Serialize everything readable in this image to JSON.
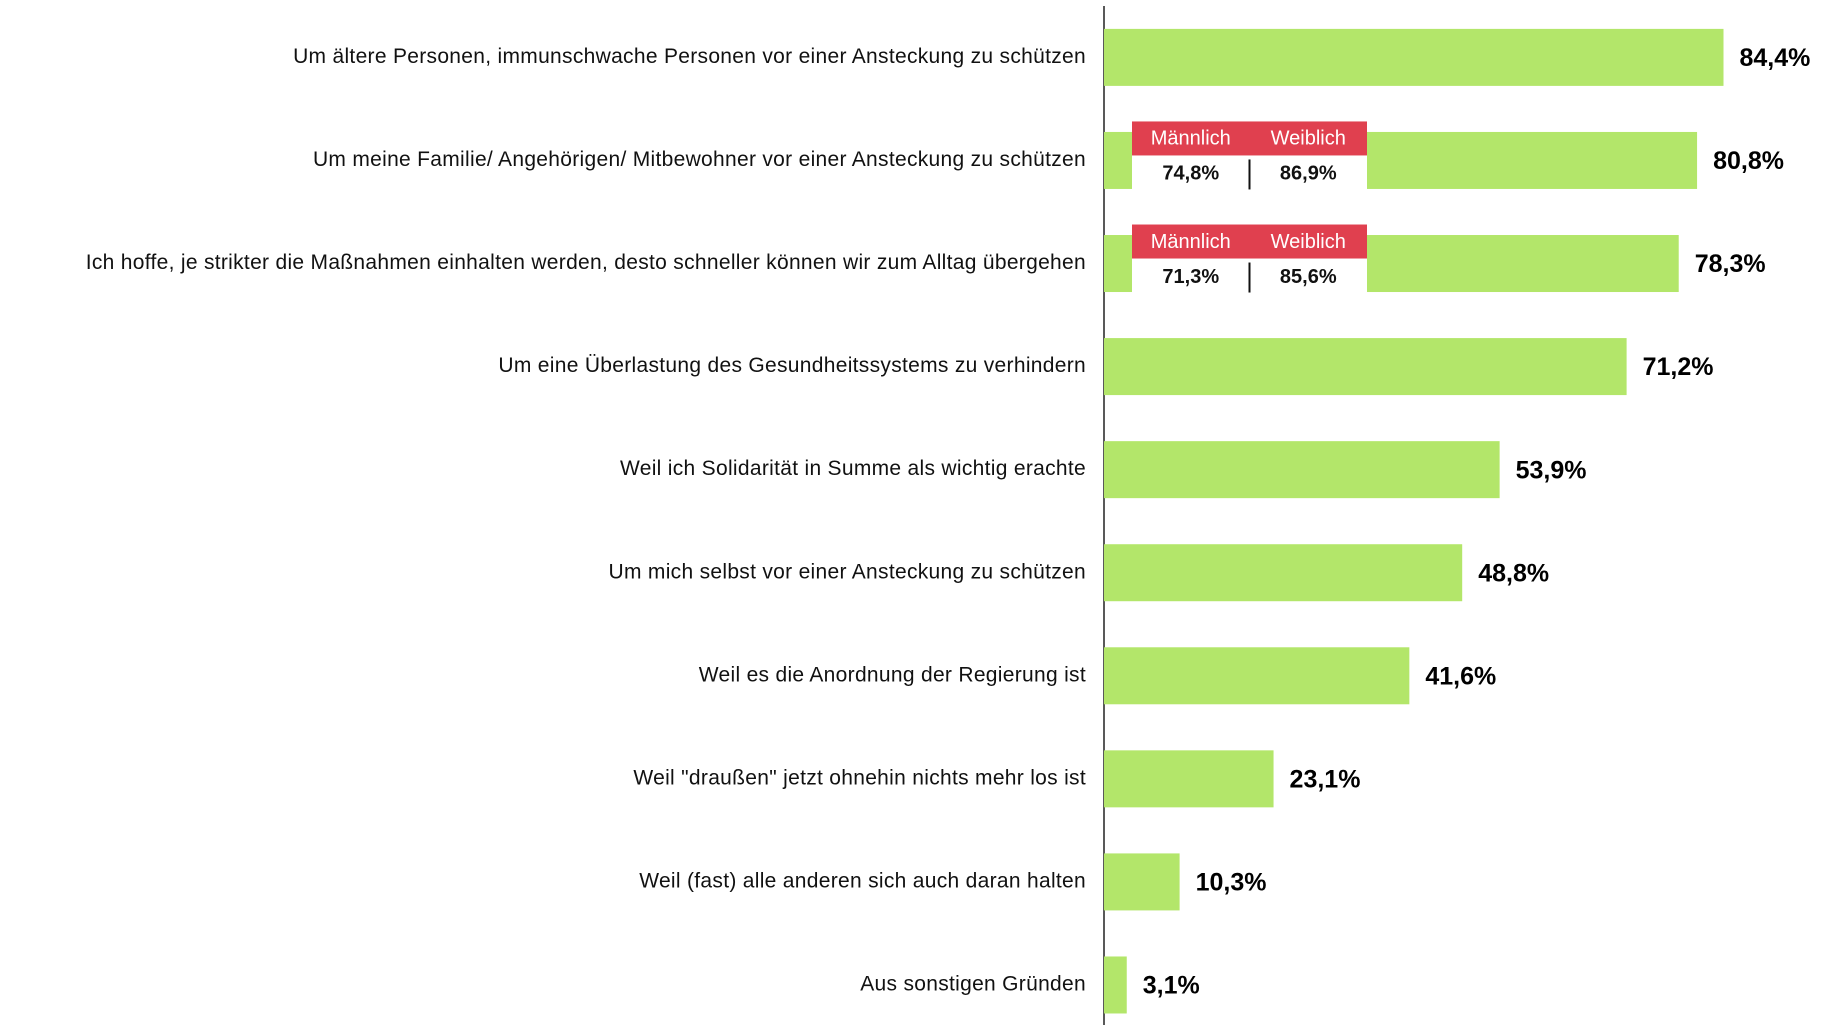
{
  "chart_data": {
    "type": "bar",
    "orientation": "horizontal",
    "color": "#b3e66a",
    "categories": [
      "Um ältere Personen, immunschwache Personen vor einer Ansteckung zu schützen",
      "Um meine Familie/ Angehörigen/ Mitbewohner vor einer Ansteckung zu schützen",
      "Ich hoffe, je strikter die Maßnahmen einhalten werden, desto schneller können wir zum Alltag übergehen",
      "Um eine Überlastung des Gesundheitssystems zu verhindern",
      "Weil ich Solidarität in Summe als wichtig erachte",
      "Um mich selbst vor einer Ansteckung zu schützen",
      "Weil es die Anordnung der Regierung ist",
      "Weil \"draußen\" jetzt ohnehin nichts mehr los ist",
      "Weil (fast) alle anderen sich auch daran halten",
      "Aus sonstigen Gründen"
    ],
    "values": [
      84.4,
      80.8,
      78.3,
      71.2,
      53.9,
      48.8,
      41.6,
      23.1,
      10.3,
      3.1
    ],
    "value_labels": [
      "84,4%",
      "80,8%",
      "78,3%",
      "71,2%",
      "53,9%",
      "48,8%",
      "41,6%",
      "23,1%",
      "10,3%",
      "3,1%"
    ],
    "breakdowns": [
      {
        "category": "Um meine Familie/ Angehörigen/ Mitbewohner vor einer Ansteckung zu schützen",
        "groups": [
          "Männlich",
          "Weiblich"
        ],
        "values": [
          74.8,
          86.9
        ],
        "value_labels": [
          "74,8%",
          "86,9%"
        ],
        "color": "#e0404f"
      },
      {
        "category": "Ich hoffe, je strikter die Maßnahmen einhalten werden, desto schneller können wir zum Alltag übergehen",
        "groups": [
          "Männlich",
          "Weiblich"
        ],
        "values": [
          71.3,
          85.6
        ],
        "value_labels": [
          "71,3%",
          "85,6%"
        ],
        "color": "#e0404f"
      }
    ]
  }
}
